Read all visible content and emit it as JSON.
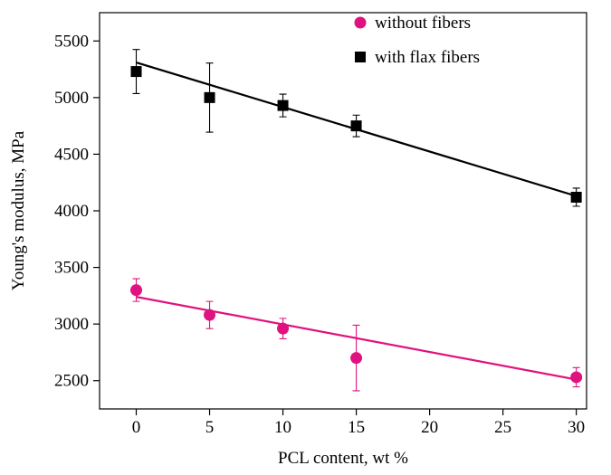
{
  "chart_data": {
    "type": "scatter",
    "x_label": "PCL content, wt %",
    "y_label": "Young's modulus, MPa",
    "x": [
      0,
      5,
      10,
      15,
      30
    ],
    "series": [
      {
        "name": "without fibers",
        "color": "#e0127f",
        "marker": "circle",
        "values": [
          3300,
          3080,
          2960,
          2700,
          2530
        ],
        "errors": [
          100,
          120,
          90,
          290,
          85
        ],
        "fit_values": [
          3240,
          2510
        ]
      },
      {
        "name": "with flax fibers",
        "color": "#000000",
        "marker": "square",
        "values": [
          5230,
          5000,
          4930,
          4750,
          4120
        ],
        "errors": [
          195,
          305,
          100,
          95,
          80
        ],
        "fit_values": [
          5310,
          4130
        ]
      }
    ],
    "fit_x": [
      0,
      30
    ],
    "xlim": [
      -2.5,
      30.7
    ],
    "xticks": [
      0,
      5,
      10,
      15,
      20,
      25,
      30
    ],
    "ylim": [
      2250,
      5750
    ],
    "yticks": [
      2500,
      3000,
      3500,
      4000,
      4500,
      5000,
      5500
    ],
    "legend": "upper right"
  }
}
